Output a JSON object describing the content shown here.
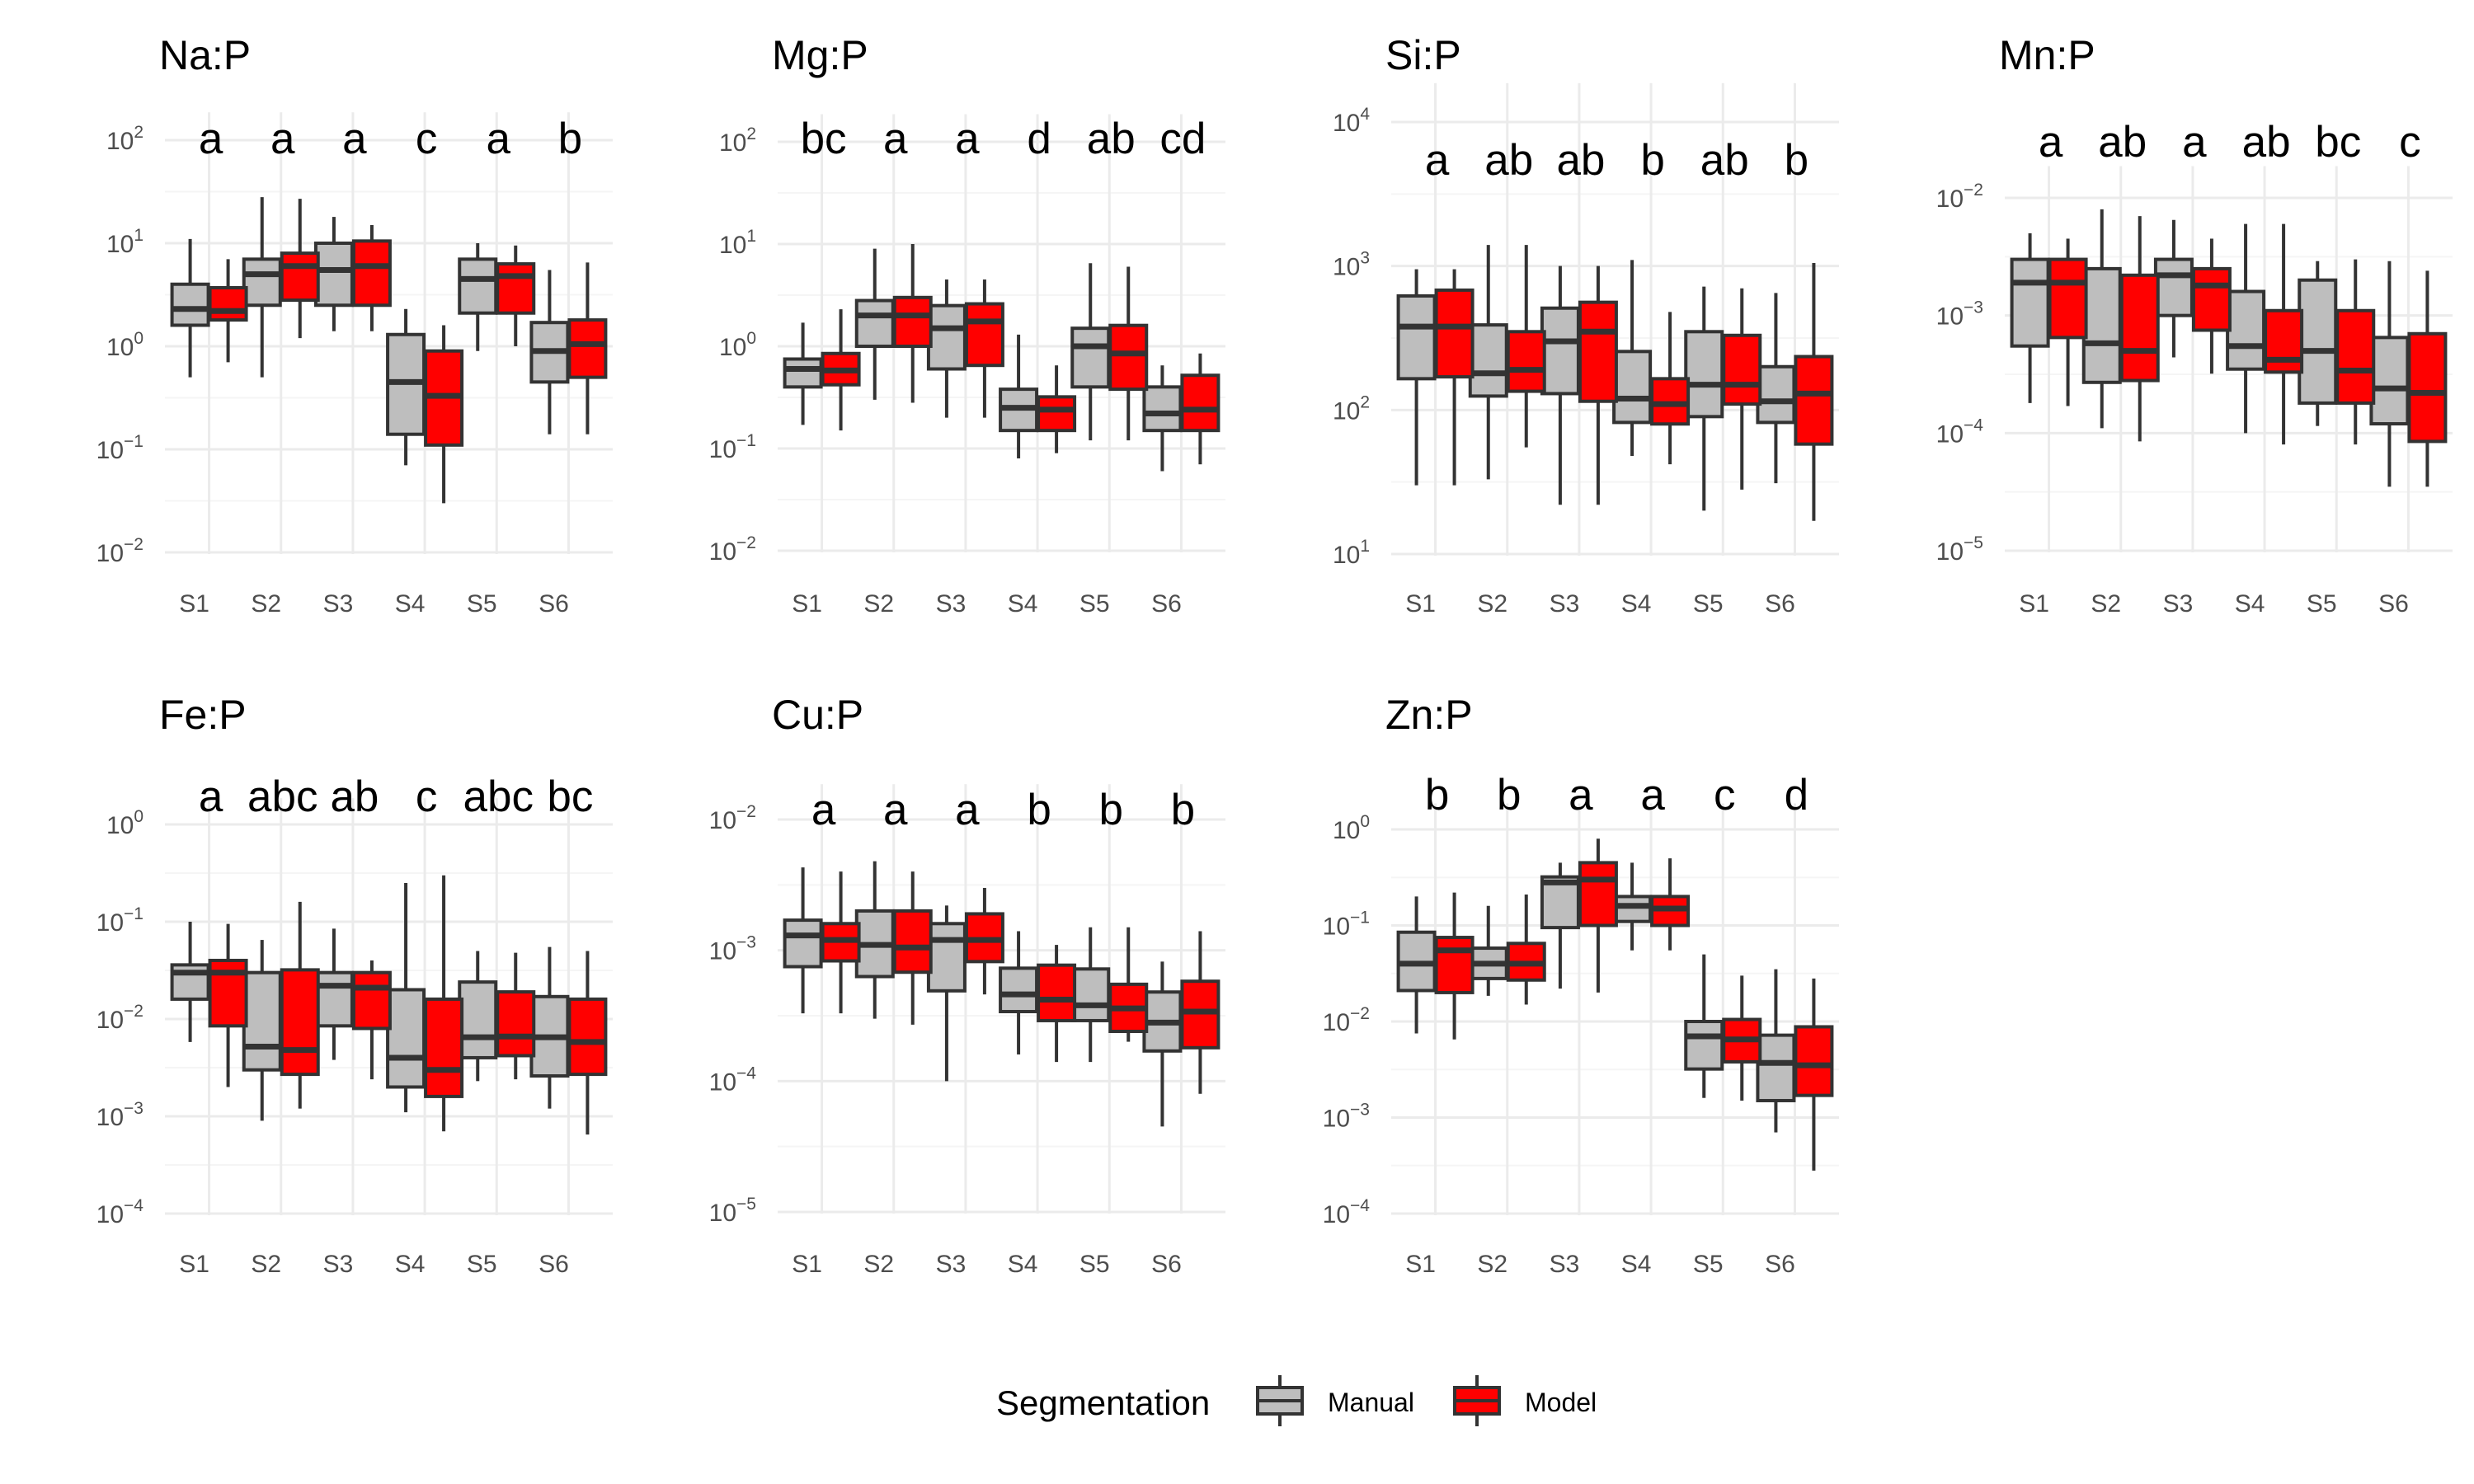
{
  "colors": {
    "manual": "#bebebe",
    "model": "#ff0000",
    "outline": "#333333",
    "grid_major": "#ebebeb",
    "grid_minor": "#f5f5f5",
    "text": "#000000",
    "tick_text": "#4d4d4d"
  },
  "legend": {
    "title": "Segmentation",
    "placement": "bottom",
    "items": [
      {
        "label": "Manual",
        "color": "#bebebe"
      },
      {
        "label": "Model",
        "color": "#ff0000"
      }
    ]
  },
  "chart_data": [
    {
      "type": "boxplot",
      "title": "Na:P",
      "yscale": "log10",
      "ylim_exp": [
        -2,
        2
      ],
      "grid": true,
      "categories": [
        "S1",
        "S2",
        "S3",
        "S4",
        "S5",
        "S6"
      ],
      "letters": [
        "a",
        "a",
        "a",
        "c",
        "a",
        "b"
      ],
      "series": [
        {
          "name": "Manual",
          "boxes": [
            [
              0.5,
              1.6,
              2.3,
              4.0,
              11.0
            ],
            [
              0.5,
              2.5,
              5.0,
              7.0,
              28.0
            ],
            [
              1.4,
              2.5,
              5.5,
              10.0,
              18.0
            ],
            [
              0.07,
              0.14,
              0.45,
              1.3,
              2.3
            ],
            [
              0.9,
              2.1,
              4.5,
              7.0,
              10.0
            ],
            [
              0.14,
              0.45,
              0.9,
              1.7,
              5.5
            ]
          ]
        },
        {
          "name": "Model",
          "boxes": [
            [
              0.7,
              1.8,
              2.2,
              3.7,
              7.0
            ],
            [
              1.2,
              2.8,
              6.0,
              8.0,
              27.0
            ],
            [
              1.4,
              2.5,
              6.0,
              10.5,
              15.0
            ],
            [
              0.03,
              0.11,
              0.33,
              0.9,
              1.6
            ],
            [
              1.0,
              2.1,
              4.8,
              6.3,
              9.5
            ],
            [
              0.14,
              0.5,
              1.05,
              1.8,
              6.5
            ]
          ]
        }
      ]
    },
    {
      "type": "boxplot",
      "title": "Mg:P",
      "yscale": "log10",
      "ylim_exp": [
        -2,
        2
      ],
      "grid": true,
      "categories": [
        "S1",
        "S2",
        "S3",
        "S4",
        "S5",
        "S6"
      ],
      "letters": [
        "bc",
        "a",
        "a",
        "d",
        "ab",
        "cd"
      ],
      "series": [
        {
          "name": "Manual",
          "boxes": [
            [
              0.17,
              0.4,
              0.6,
              0.75,
              1.7
            ],
            [
              0.3,
              1.0,
              2.0,
              2.8,
              9.0
            ],
            [
              0.2,
              0.6,
              1.5,
              2.5,
              4.5
            ],
            [
              0.08,
              0.15,
              0.25,
              0.38,
              1.3
            ],
            [
              0.12,
              0.4,
              1.0,
              1.5,
              6.5
            ],
            [
              0.06,
              0.15,
              0.22,
              0.4,
              0.65
            ]
          ]
        },
        {
          "name": "Model",
          "boxes": [
            [
              0.15,
              0.42,
              0.58,
              0.85,
              2.3
            ],
            [
              0.28,
              1.0,
              2.0,
              3.0,
              10.0
            ],
            [
              0.2,
              0.65,
              1.75,
              2.6,
              4.5
            ],
            [
              0.09,
              0.15,
              0.24,
              0.32,
              0.65
            ],
            [
              0.12,
              0.38,
              0.85,
              1.6,
              6.0
            ],
            [
              0.07,
              0.15,
              0.24,
              0.52,
              0.85
            ]
          ]
        }
      ]
    },
    {
      "type": "boxplot",
      "title": "Si:P",
      "yscale": "log10",
      "ylim_exp": [
        1,
        4
      ],
      "grid": true,
      "categories": [
        "S1",
        "S2",
        "S3",
        "S4",
        "S5",
        "S6"
      ],
      "letters": [
        "a",
        "ab",
        "ab",
        "b",
        "ab",
        "b"
      ],
      "series": [
        {
          "name": "Manual",
          "boxes": [
            [
              30,
              165,
              380,
              620,
              950
            ],
            [
              33,
              125,
              180,
              390,
              1400
            ],
            [
              22,
              130,
              300,
              510,
              1000
            ],
            [
              48,
              82,
              120,
              255,
              1100
            ],
            [
              20,
              90,
              150,
              350,
              720
            ],
            [
              31,
              82,
              115,
              200,
              650
            ]
          ]
        },
        {
          "name": "Model",
          "boxes": [
            [
              30,
              170,
              380,
              680,
              950
            ],
            [
              55,
              135,
              190,
              350,
              1400
            ],
            [
              22,
              115,
              350,
              560,
              1000
            ],
            [
              42,
              80,
              110,
              165,
              480
            ],
            [
              28,
              110,
              150,
              330,
              700
            ],
            [
              17,
              58,
              130,
              235,
              1050
            ]
          ]
        }
      ]
    },
    {
      "type": "boxplot",
      "title": "Mn:P",
      "yscale": "log10",
      "ylim_exp": [
        -5,
        -2
      ],
      "grid": true,
      "categories": [
        "S1",
        "S2",
        "S3",
        "S4",
        "S5",
        "S6"
      ],
      "letters": [
        "a",
        "ab",
        "a",
        "ab",
        "bc",
        "c"
      ],
      "series": [
        {
          "name": "Manual",
          "boxes": [
            [
              0.00018,
              0.00055,
              0.0019,
              0.003,
              0.005
            ],
            [
              0.00011,
              0.00027,
              0.00058,
              0.0025,
              0.008
            ],
            [
              0.00044,
              0.001,
              0.0022,
              0.003,
              0.0065
            ],
            [
              0.0001,
              0.00035,
              0.00055,
              0.0016,
              0.006
            ],
            [
              0.000115,
              0.00018,
              0.0005,
              0.002,
              0.0029
            ],
            [
              3.5e-05,
              0.00012,
              0.00024,
              0.00065,
              0.0029
            ]
          ]
        },
        {
          "name": "Model",
          "boxes": [
            [
              0.00017,
              0.00065,
              0.0019,
              0.003,
              0.0045
            ],
            [
              8.5e-05,
              0.00028,
              0.0005,
              0.0022,
              0.007
            ],
            [
              0.00032,
              0.00075,
              0.0018,
              0.0025,
              0.0045
            ],
            [
              8e-05,
              0.00033,
              0.00042,
              0.0011,
              0.006
            ],
            [
              8e-05,
              0.00018,
              0.00034,
              0.0011,
              0.003
            ],
            [
              3.5e-05,
              8.5e-05,
              0.00022,
              0.0007,
              0.0024
            ]
          ]
        }
      ]
    },
    {
      "type": "boxplot",
      "title": "Fe:P",
      "yscale": "log10",
      "ylim_exp": [
        -4,
        0
      ],
      "grid": true,
      "categories": [
        "S1",
        "S2",
        "S3",
        "S4",
        "S5",
        "S6"
      ],
      "letters": [
        "a",
        "abc",
        "ab",
        "c",
        "abc",
        "bc"
      ],
      "series": [
        {
          "name": "Manual",
          "boxes": [
            [
              0.0058,
              0.016,
              0.03,
              0.036,
              0.1
            ],
            [
              0.0009,
              0.003,
              0.0052,
              0.03,
              0.065
            ],
            [
              0.0038,
              0.0085,
              0.022,
              0.03,
              0.085
            ],
            [
              0.0011,
              0.002,
              0.004,
              0.02,
              0.25
            ],
            [
              0.0023,
              0.004,
              0.0065,
              0.024,
              0.05
            ],
            [
              0.0012,
              0.0026,
              0.0065,
              0.017,
              0.055
            ]
          ]
        },
        {
          "name": "Model",
          "boxes": [
            [
              0.002,
              0.0085,
              0.03,
              0.04,
              0.095
            ],
            [
              0.0012,
              0.0027,
              0.0048,
              0.032,
              0.16
            ],
            [
              0.0024,
              0.008,
              0.021,
              0.03,
              0.04
            ],
            [
              0.0007,
              0.0016,
              0.003,
              0.016,
              0.3
            ],
            [
              0.0024,
              0.0042,
              0.0066,
              0.019,
              0.048
            ],
            [
              0.00065,
              0.0027,
              0.0058,
              0.016,
              0.05
            ]
          ]
        }
      ]
    },
    {
      "type": "boxplot",
      "title": "Cu:P",
      "yscale": "log10",
      "ylim_exp": [
        -5,
        -2
      ],
      "grid": true,
      "categories": [
        "S1",
        "S2",
        "S3",
        "S4",
        "S5",
        "S6"
      ],
      "letters": [
        "a",
        "a",
        "a",
        "b",
        "b",
        "b"
      ],
      "series": [
        {
          "name": "Manual",
          "boxes": [
            [
              0.00033,
              0.00075,
              0.0013,
              0.0017,
              0.0043
            ],
            [
              0.0003,
              0.00063,
              0.0011,
              0.002,
              0.0048
            ],
            [
              0.0001,
              0.00049,
              0.0012,
              0.0016,
              0.0022
            ],
            [
              0.00016,
              0.00034,
              0.00046,
              0.00073,
              0.0014
            ],
            [
              0.00014,
              0.00029,
              0.00038,
              0.00072,
              0.0015
            ],
            [
              4.5e-05,
              0.00017,
              0.00028,
              0.00048,
              0.00082
            ]
          ]
        },
        {
          "name": "Model",
          "boxes": [
            [
              0.00033,
              0.00083,
              0.0012,
              0.0016,
              0.004
            ],
            [
              0.00027,
              0.00068,
              0.00105,
              0.002,
              0.004
            ],
            [
              0.00046,
              0.00082,
              0.0012,
              0.0019,
              0.003
            ],
            [
              0.00014,
              0.00029,
              0.00042,
              0.00077,
              0.0011
            ],
            [
              0.0002,
              0.00024,
              0.00036,
              0.00055,
              0.0015
            ],
            [
              8e-05,
              0.00018,
              0.00034,
              0.00058,
              0.0014
            ]
          ]
        }
      ]
    },
    {
      "type": "boxplot",
      "title": "Zn:P",
      "yscale": "log10",
      "ylim_exp": [
        -4,
        0
      ],
      "grid": true,
      "categories": [
        "S1",
        "S2",
        "S3",
        "S4",
        "S5",
        "S6"
      ],
      "letters": [
        "b",
        "b",
        "a",
        "a",
        "c",
        "d"
      ],
      "series": [
        {
          "name": "Manual",
          "boxes": [
            [
              0.0075,
              0.021,
              0.04,
              0.085,
              0.2
            ],
            [
              0.0185,
              0.028,
              0.04,
              0.058,
              0.16
            ],
            [
              0.022,
              0.095,
              0.28,
              0.32,
              0.45
            ],
            [
              0.055,
              0.11,
              0.16,
              0.2,
              0.45
            ],
            [
              0.0016,
              0.0032,
              0.007,
              0.01,
              0.05
            ],
            [
              0.0007,
              0.0015,
              0.0037,
              0.0072,
              0.035
            ]
          ]
        },
        {
          "name": "Model",
          "boxes": [
            [
              0.0065,
              0.02,
              0.055,
              0.075,
              0.22
            ],
            [
              0.015,
              0.027,
              0.04,
              0.065,
              0.21
            ],
            [
              0.02,
              0.1,
              0.3,
              0.45,
              0.8
            ],
            [
              0.055,
              0.1,
              0.15,
              0.2,
              0.5
            ],
            [
              0.0015,
              0.0038,
              0.0065,
              0.0105,
              0.03
            ],
            [
              0.00028,
              0.0017,
              0.0035,
              0.0088,
              0.028
            ]
          ]
        }
      ]
    }
  ]
}
